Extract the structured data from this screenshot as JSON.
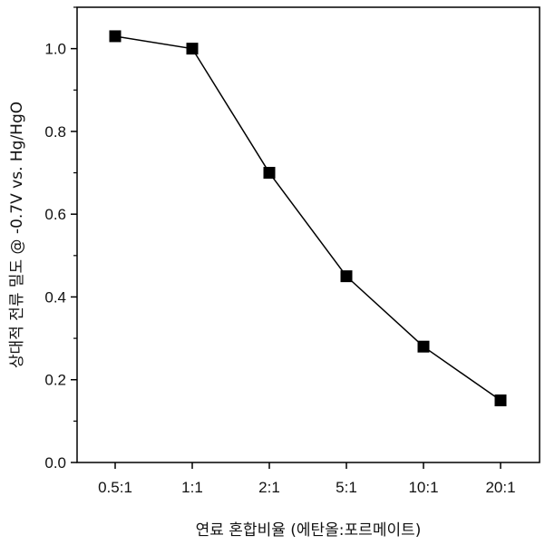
{
  "chart_data": {
    "type": "line",
    "title": "",
    "xlabel": "연료 혼합비율 (에탄올:포르메이트)",
    "ylabel": "상대적 전류 밀도 @ -0.7V vs. Hg/HgO",
    "categories": [
      "0.5:1",
      "1:1",
      "2:1",
      "5:1",
      "10:1",
      "20:1"
    ],
    "series": [
      {
        "values": [
          1.03,
          1.0,
          0.7,
          0.45,
          0.28,
          0.15
        ]
      }
    ],
    "ylim": [
      0.0,
      1.1
    ],
    "yticks": [
      "0.0",
      "0.2",
      "0.4",
      "0.6",
      "0.8",
      "1.0"
    ],
    "grid": false,
    "legend": "none",
    "marker": "square",
    "line_color": "#000000",
    "marker_color": "#000000"
  }
}
